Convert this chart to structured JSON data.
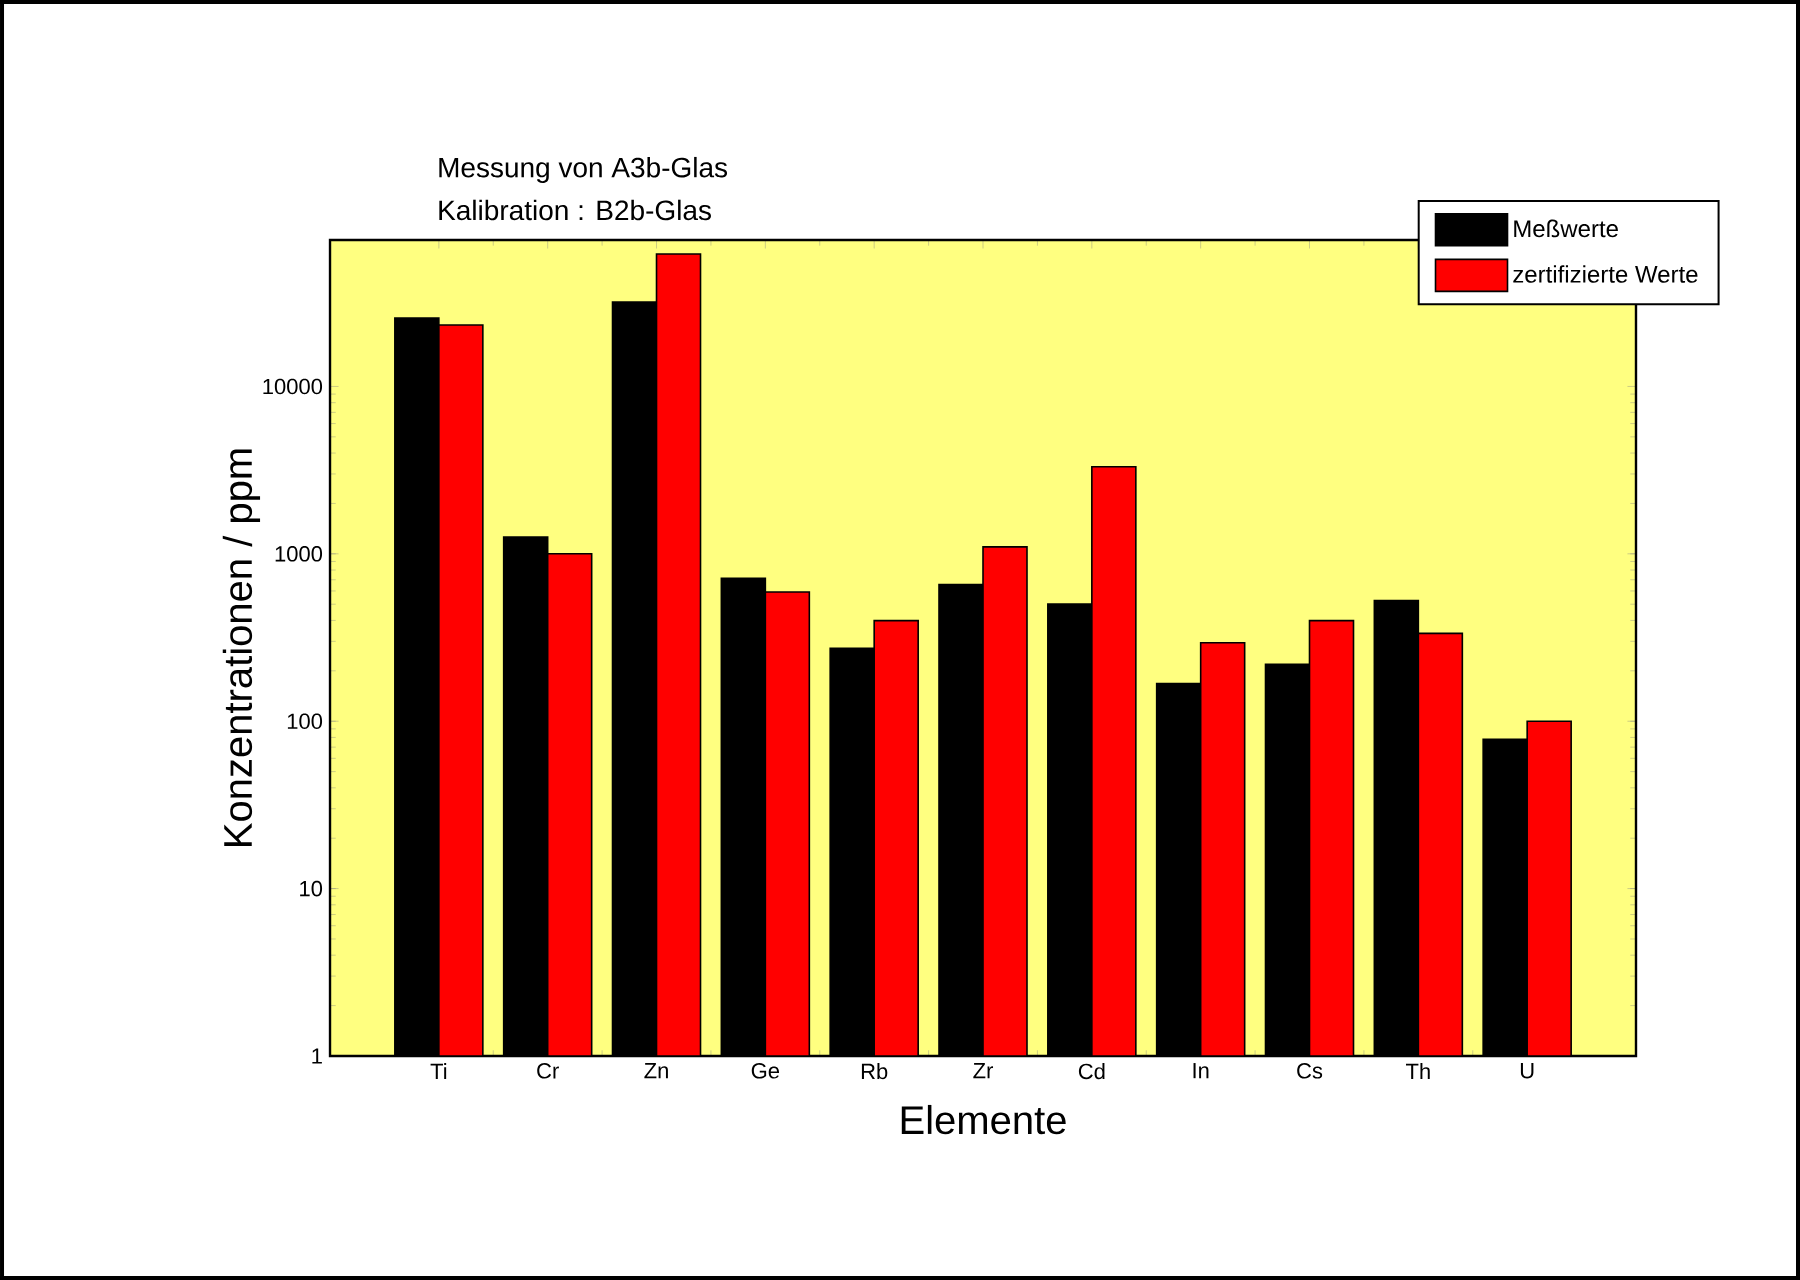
{
  "chart_data": {
    "type": "bar",
    "title": "Messung von A3b-Glas",
    "subtitle": "Kalibration : B2b-Glas",
    "xlabel": "Elemente",
    "ylabel": "Konzentrationen / ppm",
    "categories": [
      "Ti",
      "Cr",
      "Zn",
      "Ge",
      "Rb",
      "Zr",
      "Cd",
      "In",
      "Cs",
      "Th",
      "U"
    ],
    "series": [
      {
        "name": "Meßwerte",
        "color": "#000000",
        "values": [
          25600,
          1260,
          31900,
          713,
          273,
          656,
          501,
          168,
          219,
          526,
          78
        ]
      },
      {
        "name": "zertifizierte Werte",
        "color": "#ff0000",
        "values": [
          23300,
          1000,
          61800,
          592,
          399,
          1100,
          3310,
          294,
          399,
          335,
          100
        ]
      }
    ],
    "log": "y",
    "ylim": [
      1,
      75000
    ],
    "yticks": [
      1,
      10,
      100,
      1000,
      10000
    ],
    "grid": false,
    "legend": "top right"
  }
}
